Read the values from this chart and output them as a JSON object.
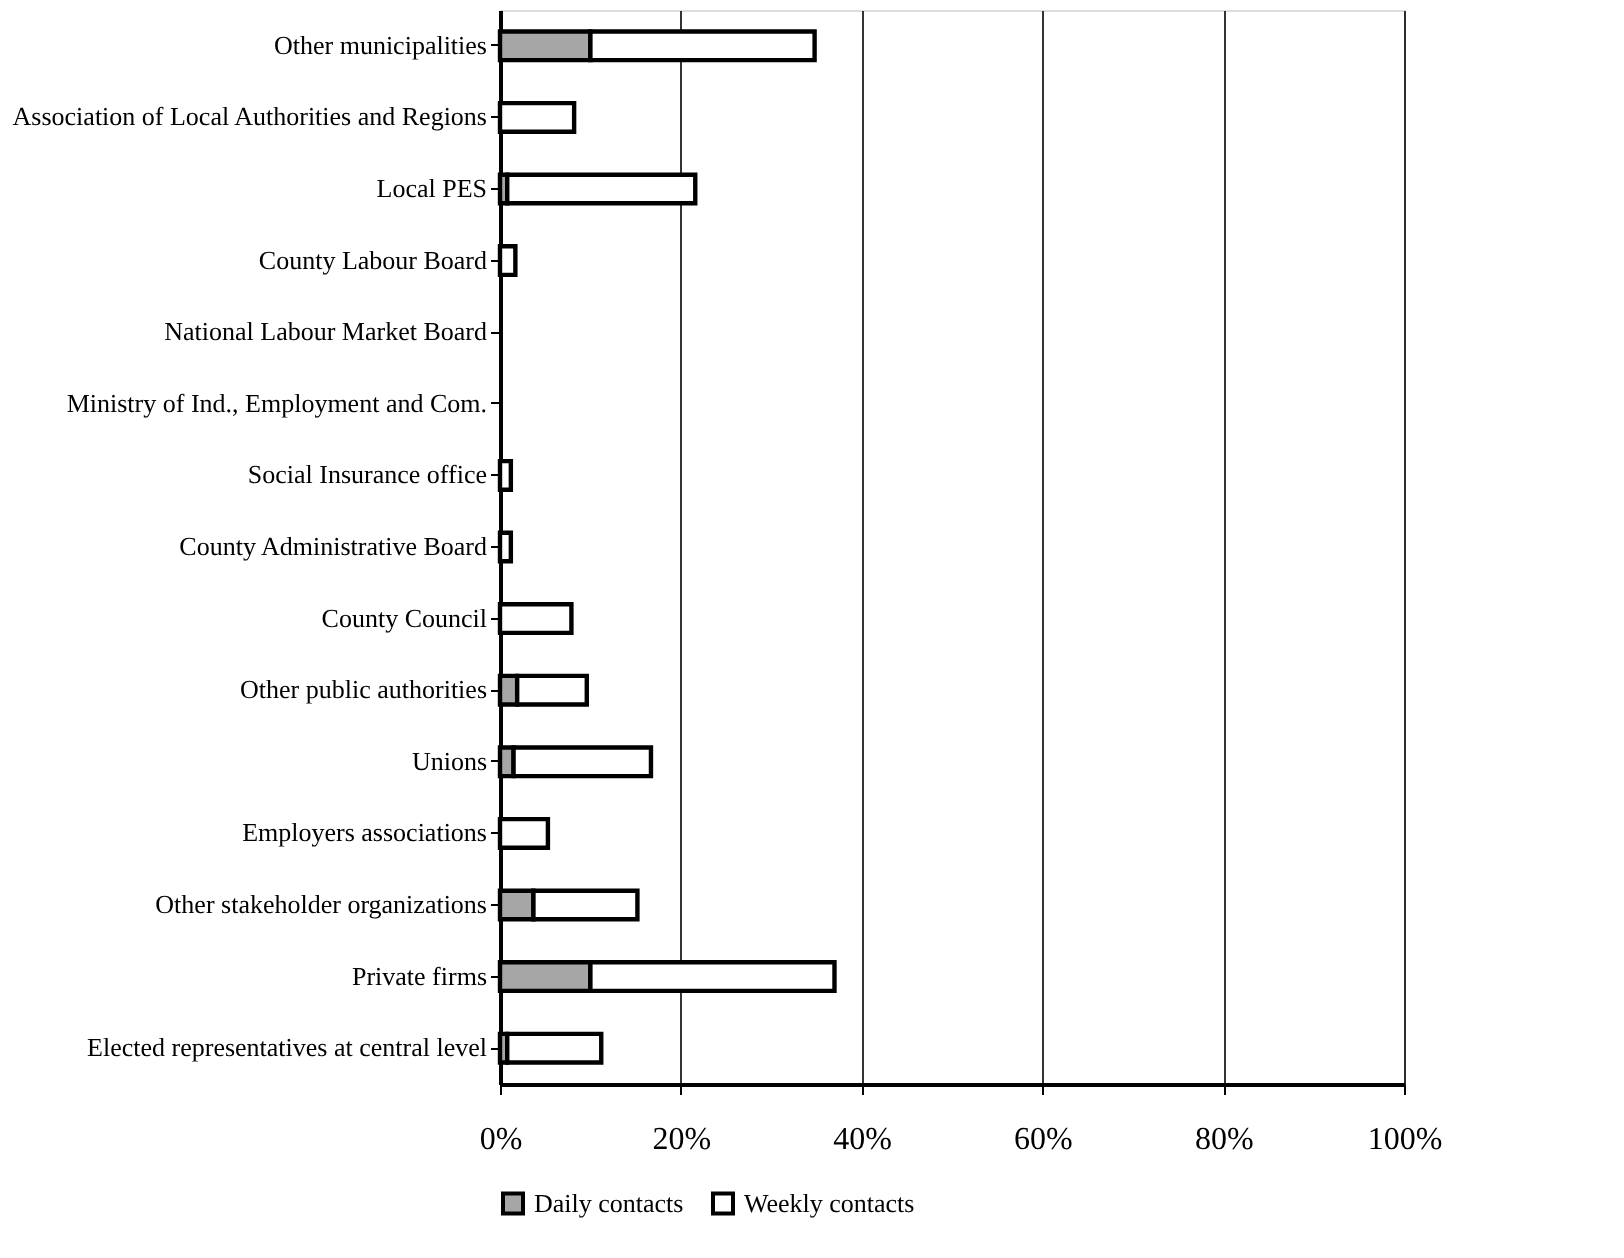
{
  "chart_data": {
    "type": "bar",
    "orientation": "horizontal",
    "stacked": true,
    "categories": [
      "Other municipalities",
      "Association of Local Authorities and Regions",
      "Local PES",
      "County Labour Board",
      "National Labour Market Board",
      "Ministry of Ind., Employment and Com.",
      "Social Insurance office",
      "County Administrative Board",
      "County Council",
      "Other public authorities",
      "Unions",
      "Employers associations",
      "Other stakeholder organizations",
      "Private firms",
      "Elected representatives at central level"
    ],
    "series": [
      {
        "name": "Daily contacts",
        "color": "#a6a6a6",
        "values": [
          10,
          null,
          0.8,
          0,
          0,
          0,
          0,
          0,
          null,
          1.9,
          1.5,
          0,
          3.7,
          10,
          0.8
        ]
      },
      {
        "name": "Weekly contacts",
        "color": "#ffffff",
        "values": [
          24.8,
          8.2,
          20.8,
          1.7,
          0,
          0,
          1.2,
          1.2,
          7.9,
          7.7,
          15.2,
          5.3,
          11.5,
          27,
          10.4
        ]
      }
    ],
    "xlim": [
      0,
      100
    ],
    "xticks": [
      {
        "value": 0,
        "label": "0%"
      },
      {
        "value": 20,
        "label": "20%"
      },
      {
        "value": 40,
        "label": "40%"
      },
      {
        "value": 60,
        "label": "60%"
      },
      {
        "value": 80,
        "label": "80%"
      },
      {
        "value": 100,
        "label": "100%"
      }
    ],
    "grid": "x",
    "legend": "bottom"
  }
}
